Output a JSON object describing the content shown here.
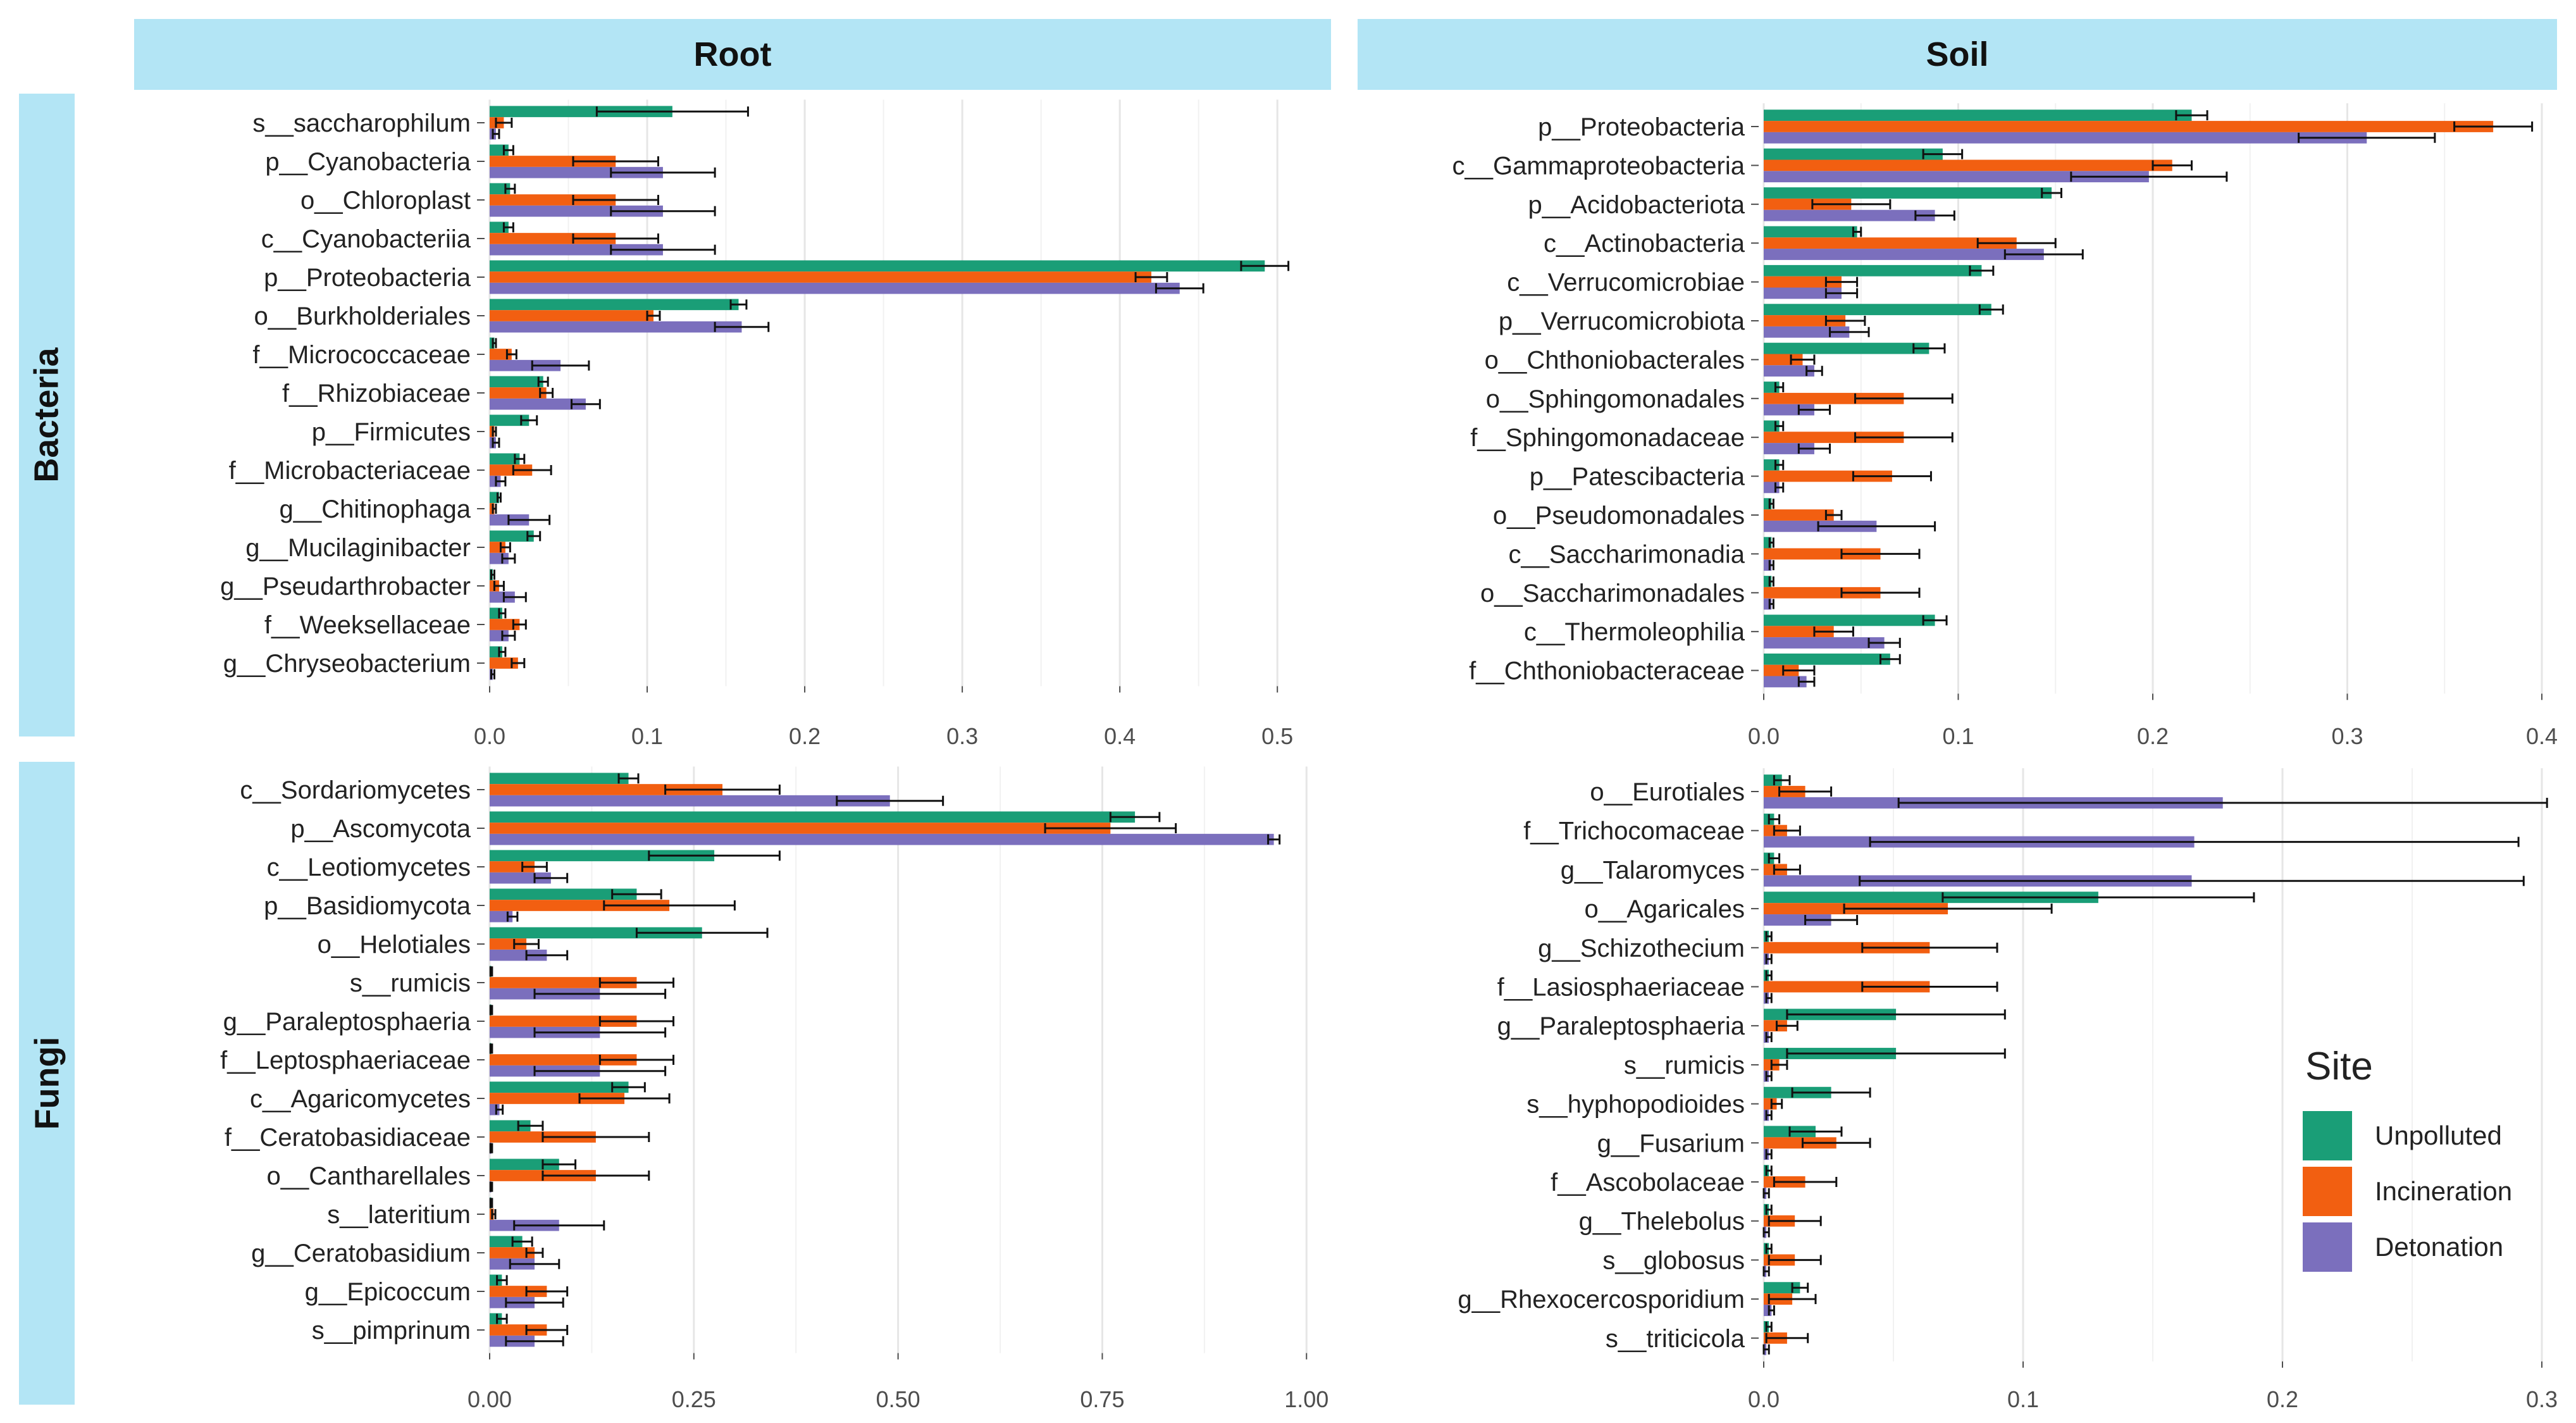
{
  "strips": {
    "columns": [
      "Root",
      "Soil"
    ],
    "rows": [
      "Bacteria",
      "Fungi"
    ]
  },
  "legend": {
    "title": "Site",
    "entries": [
      {
        "label": "Unpolluted",
        "color": "#1a9e77"
      },
      {
        "label": "Incineration",
        "color": "#f25f11"
      },
      {
        "label": "Detonation",
        "color": "#7b6fbd"
      }
    ]
  },
  "chart_data": [
    {
      "type": "bar",
      "orientation": "horizontal",
      "panel": "Bacteria / Root",
      "xlim": [
        0,
        0.52
      ],
      "xticks": [
        "0.0",
        "0.1",
        "0.2",
        "0.3",
        "0.4",
        "0.5"
      ],
      "xtick_values": [
        0,
        0.1,
        0.2,
        0.3,
        0.4,
        0.5
      ],
      "categories": [
        "s__saccharophilum",
        "p__Cyanobacteria",
        "o__Chloroplast",
        "c__Cyanobacteriia",
        "p__Proteobacteria",
        "o__Burkholderiales",
        "f__Micrococcaceae",
        "f__Rhizobiaceae",
        "p__Firmicutes",
        "f__Microbacteriaceae",
        "g__Chitinophaga",
        "g__Mucilaginibacter",
        "g__Pseudarthrobacter",
        "f__Weeksellaceae",
        "g__Chryseobacterium"
      ],
      "series": [
        {
          "name": "Unpolluted",
          "values": [
            0.116,
            0.012,
            0.013,
            0.012,
            0.492,
            0.158,
            0.003,
            0.034,
            0.025,
            0.019,
            0.006,
            0.028,
            0.002,
            0.008,
            0.008
          ],
          "errors": [
            0.048,
            0.003,
            0.003,
            0.003,
            0.015,
            0.005,
            0.001,
            0.003,
            0.005,
            0.003,
            0.001,
            0.004,
            0.001,
            0.002,
            0.002
          ]
        },
        {
          "name": "Incineration",
          "values": [
            0.009,
            0.08,
            0.08,
            0.08,
            0.42,
            0.104,
            0.014,
            0.036,
            0.003,
            0.027,
            0.003,
            0.01,
            0.006,
            0.019,
            0.018
          ],
          "errors": [
            0.005,
            0.027,
            0.027,
            0.027,
            0.01,
            0.004,
            0.003,
            0.004,
            0.001,
            0.012,
            0.001,
            0.003,
            0.003,
            0.004,
            0.004
          ]
        },
        {
          "name": "Detonation",
          "values": [
            0.004,
            0.11,
            0.11,
            0.11,
            0.438,
            0.16,
            0.045,
            0.061,
            0.004,
            0.007,
            0.025,
            0.012,
            0.016,
            0.012,
            0.002
          ],
          "errors": [
            0.002,
            0.033,
            0.033,
            0.033,
            0.015,
            0.017,
            0.018,
            0.009,
            0.002,
            0.003,
            0.013,
            0.004,
            0.007,
            0.004,
            0.001
          ]
        }
      ]
    },
    {
      "type": "bar",
      "orientation": "horizontal",
      "panel": "Bacteria / Soil",
      "xlim": [
        0,
        0.4
      ],
      "xticks": [
        "0.0",
        "0.1",
        "0.2",
        "0.3",
        "0.4"
      ],
      "xtick_values": [
        0,
        0.1,
        0.2,
        0.3,
        0.4
      ],
      "categories": [
        "p__Proteobacteria",
        "c__Gammaproteobacteria",
        "p__Acidobacteriota",
        "c__Actinobacteria",
        "c__Verrucomicrobiae",
        "p__Verrucomicrobiota",
        "o__Chthoniobacterales",
        "o__Sphingomonadales",
        "f__Sphingomonadaceae",
        "p__Patescibacteria",
        "o__Pseudomonadales",
        "c__Saccharimonadia",
        "o__Saccharimonadales",
        "c__Thermoleophilia",
        "f__Chthoniobacteraceae"
      ],
      "series": [
        {
          "name": "Unpolluted",
          "values": [
            0.22,
            0.092,
            0.148,
            0.048,
            0.112,
            0.117,
            0.085,
            0.008,
            0.008,
            0.008,
            0.004,
            0.004,
            0.004,
            0.088,
            0.065
          ],
          "errors": [
            0.008,
            0.01,
            0.005,
            0.002,
            0.006,
            0.006,
            0.008,
            0.002,
            0.002,
            0.002,
            0.001,
            0.001,
            0.001,
            0.006,
            0.005
          ]
        },
        {
          "name": "Incineration",
          "values": [
            0.375,
            0.21,
            0.045,
            0.13,
            0.04,
            0.042,
            0.02,
            0.072,
            0.072,
            0.066,
            0.036,
            0.06,
            0.06,
            0.036,
            0.018
          ],
          "errors": [
            0.02,
            0.01,
            0.02,
            0.02,
            0.008,
            0.01,
            0.006,
            0.025,
            0.025,
            0.02,
            0.004,
            0.02,
            0.02,
            0.01,
            0.008
          ]
        },
        {
          "name": "Detonation",
          "values": [
            0.31,
            0.198,
            0.088,
            0.144,
            0.04,
            0.044,
            0.026,
            0.026,
            0.026,
            0.008,
            0.058,
            0.004,
            0.004,
            0.062,
            0.022
          ],
          "errors": [
            0.035,
            0.04,
            0.01,
            0.02,
            0.008,
            0.01,
            0.004,
            0.008,
            0.008,
            0.002,
            0.03,
            0.001,
            0.001,
            0.008,
            0.004
          ]
        }
      ]
    },
    {
      "type": "bar",
      "orientation": "horizontal",
      "panel": "Fungi / Root",
      "xlim": [
        0,
        1.03
      ],
      "xticks": [
        "0.00",
        "0.25",
        "0.50",
        "0.75",
        "1.00"
      ],
      "xtick_values": [
        0,
        0.25,
        0.5,
        0.75,
        1.0
      ],
      "categories": [
        "c__Sordariomycetes",
        "p__Ascomycota",
        "c__Leotiomycetes",
        "p__Basidiomycota",
        "o__Helotiales",
        "s__rumicis",
        "g__Paraleptosphaeria",
        "f__Leptosphaeriaceae",
        "c__Agaricomycetes",
        "f__Ceratobasidiaceae",
        "o__Cantharellales",
        "s__lateritium",
        "g__Ceratobasidium",
        "g__Epicoccum",
        "s__pimprinum"
      ],
      "series": [
        {
          "name": "Unpolluted",
          "values": [
            0.17,
            0.79,
            0.275,
            0.18,
            0.26,
            0.002,
            0.002,
            0.002,
            0.17,
            0.05,
            0.085,
            0.002,
            0.04,
            0.015,
            0.015
          ],
          "errors": [
            0.012,
            0.03,
            0.08,
            0.03,
            0.08,
            0.001,
            0.001,
            0.001,
            0.02,
            0.015,
            0.02,
            0.001,
            0.012,
            0.006,
            0.006
          ]
        },
        {
          "name": "Incineration",
          "values": [
            0.285,
            0.76,
            0.055,
            0.22,
            0.045,
            0.18,
            0.18,
            0.18,
            0.165,
            0.13,
            0.13,
            0.005,
            0.055,
            0.07,
            0.07
          ],
          "errors": [
            0.07,
            0.08,
            0.015,
            0.08,
            0.015,
            0.045,
            0.045,
            0.045,
            0.055,
            0.065,
            0.065,
            0.002,
            0.01,
            0.025,
            0.025
          ]
        },
        {
          "name": "Detonation",
          "values": [
            0.49,
            0.96,
            0.075,
            0.028,
            0.07,
            0.135,
            0.135,
            0.135,
            0.012,
            0.002,
            0.002,
            0.085,
            0.055,
            0.055,
            0.055
          ],
          "errors": [
            0.065,
            0.007,
            0.02,
            0.006,
            0.025,
            0.08,
            0.08,
            0.08,
            0.004,
            0.001,
            0.001,
            0.055,
            0.03,
            0.035,
            0.035
          ]
        }
      ]
    },
    {
      "type": "bar",
      "orientation": "horizontal",
      "panel": "Fungi / Soil",
      "xlim": [
        0,
        0.3
      ],
      "xticks": [
        "0.0",
        "0.1",
        "0.2",
        "0.3"
      ],
      "xtick_values": [
        0,
        0.1,
        0.2,
        0.3
      ],
      "categories": [
        "o__Eurotiales",
        "f__Trichocomaceae",
        "g__Talaromyces",
        "o__Agaricales",
        "g__Schizothecium",
        "f__Lasiosphaeriaceae",
        "g__Paraleptosphaeria",
        "s__rumicis",
        "s__hyphopodioides",
        "g__Fusarium",
        "f__Ascobolaceae",
        "g__Thelebolus",
        "s__globosus",
        "g__Rhexocercosporidium",
        "s__triticicola"
      ],
      "series": [
        {
          "name": "Unpolluted",
          "values": [
            0.007,
            0.004,
            0.004,
            0.129,
            0.002,
            0.002,
            0.051,
            0.051,
            0.026,
            0.02,
            0.002,
            0.002,
            0.002,
            0.014,
            0.002
          ],
          "errors": [
            0.003,
            0.002,
            0.002,
            0.06,
            0.001,
            0.001,
            0.042,
            0.042,
            0.015,
            0.01,
            0.001,
            0.001,
            0.001,
            0.003,
            0.001
          ]
        },
        {
          "name": "Incineration",
          "values": [
            0.016,
            0.009,
            0.009,
            0.071,
            0.064,
            0.064,
            0.009,
            0.006,
            0.005,
            0.028,
            0.016,
            0.012,
            0.012,
            0.011,
            0.009
          ],
          "errors": [
            0.01,
            0.005,
            0.005,
            0.04,
            0.026,
            0.026,
            0.004,
            0.003,
            0.002,
            0.013,
            0.012,
            0.01,
            0.01,
            0.009,
            0.008
          ]
        },
        {
          "name": "Detonation",
          "values": [
            0.177,
            0.166,
            0.165,
            0.026,
            0.002,
            0.002,
            0.002,
            0.002,
            0.002,
            0.002,
            0.001,
            0.001,
            0.001,
            0.003,
            0.001
          ],
          "errors": [
            0.125,
            0.125,
            0.128,
            0.01,
            0.001,
            0.001,
            0.001,
            0.001,
            0.001,
            0.001,
            0.001,
            0.001,
            0.001,
            0.001,
            0.001
          ]
        }
      ]
    }
  ]
}
